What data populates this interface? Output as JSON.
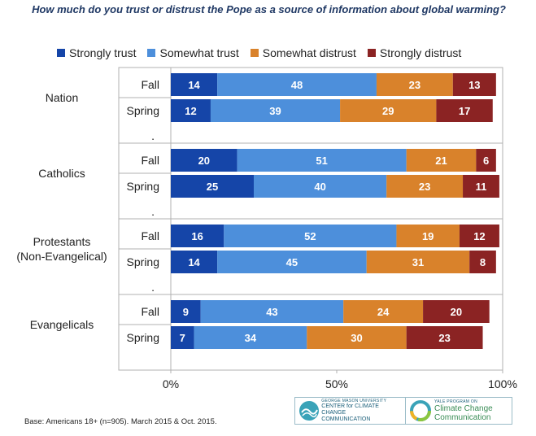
{
  "chart_data": {
    "type": "bar",
    "orientation": "horizontal",
    "stacked": true,
    "title": "How much do you trust or distrust the Pope as a source of information about global warming?",
    "groups": [
      {
        "name": "Nation",
        "rows": [
          {
            "label": "Fall",
            "values": [
              14,
              48,
              23,
              13
            ]
          },
          {
            "label": "Spring",
            "values": [
              12,
              39,
              29,
              17
            ]
          }
        ]
      },
      {
        "name": "Catholics",
        "rows": [
          {
            "label": "Fall",
            "values": [
              20,
              51,
              21,
              6
            ]
          },
          {
            "label": "Spring",
            "values": [
              25,
              40,
              23,
              11
            ]
          }
        ]
      },
      {
        "name": "Protestants (Non-Evangelical)",
        "name_lines": [
          "Protestants",
          "(Non-Evangelical)"
        ],
        "rows": [
          {
            "label": "Fall",
            "values": [
              16,
              52,
              19,
              12
            ]
          },
          {
            "label": "Spring",
            "values": [
              14,
              45,
              31,
              8
            ]
          }
        ]
      },
      {
        "name": "Evangelicals",
        "rows": [
          {
            "label": "Fall",
            "values": [
              9,
              43,
              24,
              20
            ]
          },
          {
            "label": "Spring",
            "values": [
              7,
              34,
              30,
              23
            ]
          }
        ]
      }
    ],
    "separator_label": ".",
    "series": [
      {
        "name": "Strongly trust",
        "color": "#1545a8"
      },
      {
        "name": "Somewhat trust",
        "color": "#4d8fdb"
      },
      {
        "name": "Somewhat distrust",
        "color": "#d9822b"
      },
      {
        "name": "Strongly distrust",
        "color": "#8b2323"
      }
    ],
    "xlim": [
      0,
      100
    ],
    "x_ticks": [
      "0%",
      "50%",
      "100%"
    ],
    "legend_position": "top",
    "grid": false
  },
  "footnote": "Base: Americans 18+ (n=905). March 2015 & Oct. 2015.",
  "logos": {
    "gmu": {
      "line1": "GEORGE MASON UNIVERSITY",
      "line2": "CENTER for CLIMATE CHANGE",
      "line3": "COMMUNICATION"
    },
    "yale": {
      "line1": "YALE PROGRAM ON",
      "line2": "Climate Change",
      "line3": "Communication"
    }
  }
}
